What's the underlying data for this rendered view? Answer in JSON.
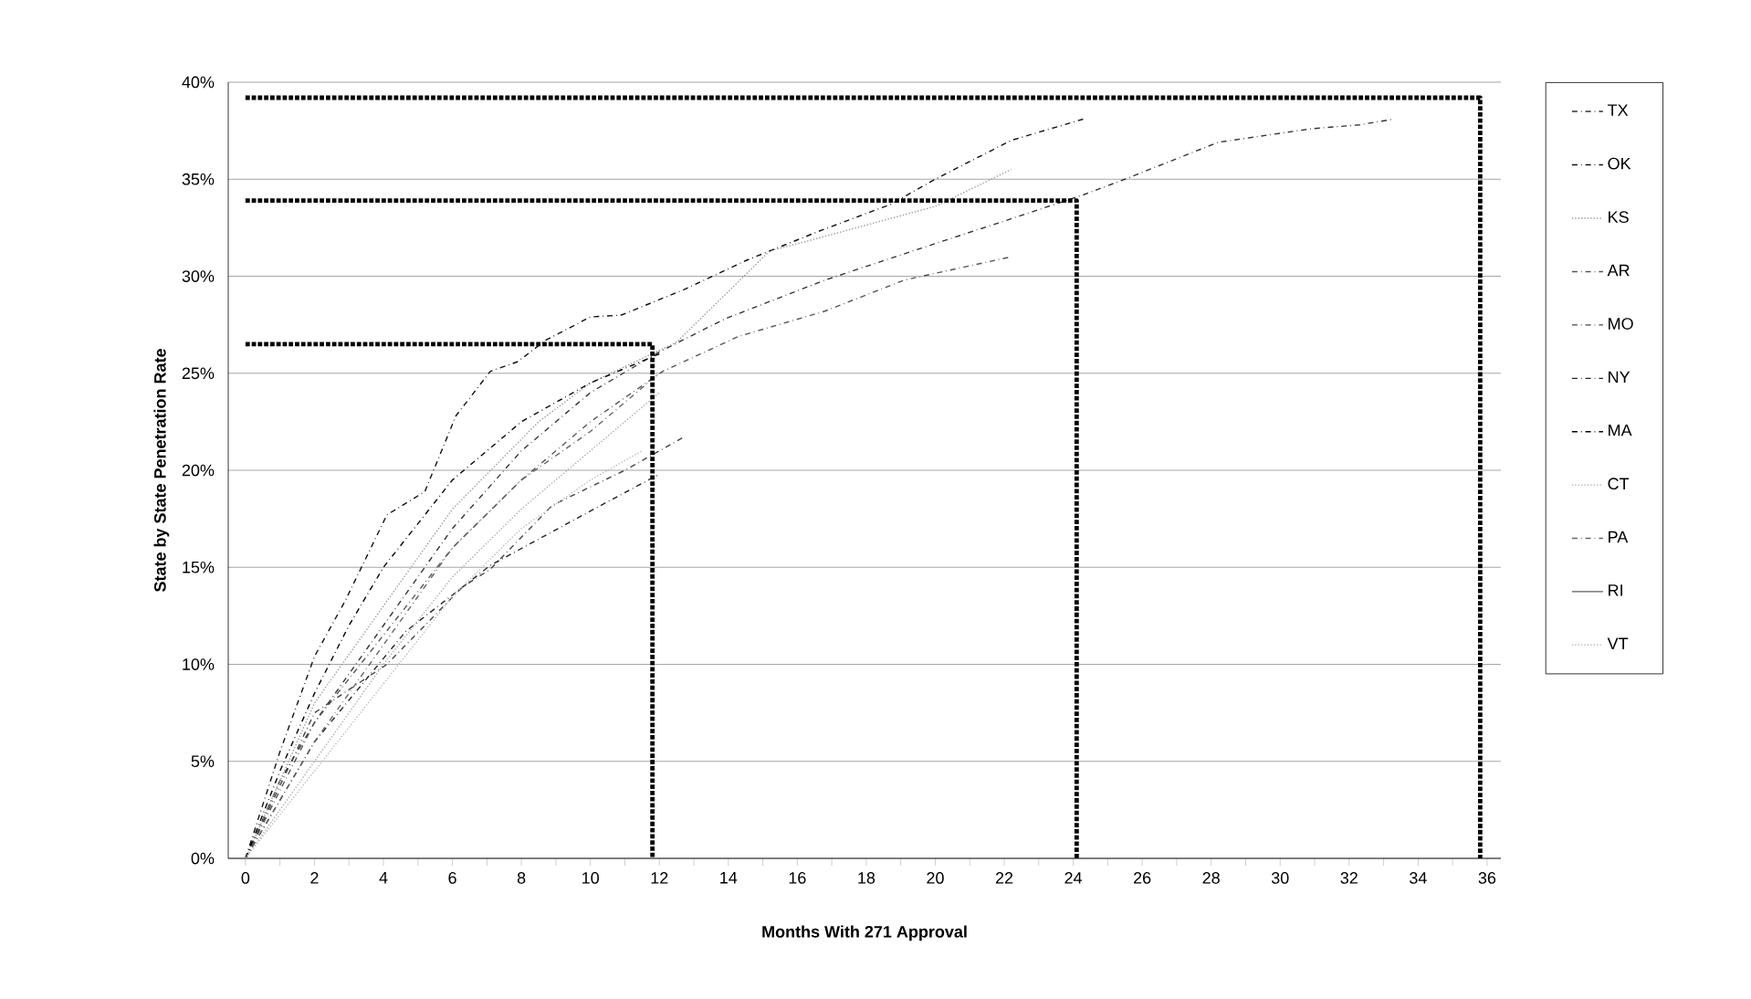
{
  "chart_data": {
    "type": "line",
    "xlabel": "Months With 271 Approval",
    "ylabel": "State by State Penetration Rate",
    "xlim": [
      -0.5,
      36.4
    ],
    "ylim": [
      0,
      40
    ],
    "xticks": [
      0,
      2,
      4,
      6,
      8,
      10,
      12,
      14,
      16,
      18,
      20,
      22,
      24,
      26,
      28,
      30,
      32,
      34,
      36
    ],
    "yticks": [
      {
        "value": 0,
        "label": "0%"
      },
      {
        "value": 5,
        "label": "5%"
      },
      {
        "value": 10,
        "label": "10%"
      },
      {
        "value": 15,
        "label": "15%"
      },
      {
        "value": 20,
        "label": "20%"
      },
      {
        "value": 25,
        "label": "25%"
      },
      {
        "value": 30,
        "label": "30%"
      },
      {
        "value": 35,
        "label": "35%"
      },
      {
        "value": 40,
        "label": "40%"
      }
    ],
    "grid": "y",
    "legend": "right",
    "series": [
      {
        "name": "TX",
        "color": "#333333",
        "line_style": "dashed",
        "x": [
          0,
          1,
          2,
          4,
          6,
          8,
          10,
          12,
          13.9,
          16.8,
          20.2,
          22.1,
          24.3,
          25.5,
          28.2,
          30.9,
          32.3,
          33.3
        ],
        "values": [
          0,
          4,
          7,
          12,
          17,
          21,
          24,
          26.1,
          27.8,
          29.8,
          31.8,
          32.9,
          34.2,
          35,
          36.9,
          37.6,
          37.8,
          38.1
        ]
      },
      {
        "name": "OK",
        "color": "#111111",
        "line_style": "dashed",
        "x": [
          0,
          1,
          2,
          2.9,
          4.1,
          5.2,
          6.1,
          7.1,
          7.9,
          8.7,
          10,
          10.9,
          12.7,
          14.5,
          16.6,
          18.7,
          20,
          22.2,
          24.3
        ],
        "values": [
          0,
          5.5,
          10.4,
          13.3,
          17.7,
          18.9,
          22.8,
          25.1,
          25.6,
          26.7,
          27.9,
          28,
          29.3,
          30.8,
          32.3,
          33.7,
          35,
          37,
          38.1
        ]
      },
      {
        "name": "KS",
        "color": "#999999",
        "line_style": "dotted",
        "x": [
          0,
          1,
          2,
          4,
          6,
          8.5,
          10,
          12.5,
          15.2,
          17.1,
          20,
          22.2
        ],
        "values": [
          0,
          4,
          8,
          13,
          18,
          22.5,
          24.5,
          26.6,
          31.3,
          32.2,
          33.6,
          35.5
        ]
      },
      {
        "name": "AR",
        "color": "#555555",
        "line_style": "dashed",
        "x": [
          0,
          1,
          2,
          4,
          6,
          8,
          10,
          12.1,
          14.3,
          16.8,
          19.1,
          22.2
        ],
        "values": [
          0,
          3.5,
          7,
          11.5,
          16,
          19.5,
          22.5,
          25.1,
          26.9,
          28.2,
          29.8,
          31
        ]
      },
      {
        "name": "MO",
        "color": "#444444",
        "line_style": "dashed",
        "x": [
          0,
          2,
          4.1,
          6.3,
          7.1,
          8.9,
          11,
          12.7
        ],
        "values": [
          0,
          7.5,
          10,
          14,
          14.9,
          18.2,
          20,
          21.7
        ]
      },
      {
        "name": "NY",
        "color": "#222222",
        "line_style": "dashed",
        "x": [
          0,
          2,
          4.65,
          7.1,
          10,
          12
        ],
        "values": [
          0,
          6,
          11.7,
          15.1,
          17.9,
          19.8
        ]
      },
      {
        "name": "MA",
        "color": "#000000",
        "line_style": "dashed",
        "x": [
          0,
          1,
          2,
          3,
          4,
          6,
          8,
          10,
          12
        ],
        "values": [
          0,
          4.5,
          8.5,
          12,
          15,
          19.5,
          22.5,
          24.5,
          26
        ]
      },
      {
        "name": "CT",
        "color": "#aaaaaa",
        "line_style": "dotted",
        "x": [
          0,
          2,
          4,
          6,
          8,
          10,
          12
        ],
        "values": [
          0,
          5,
          10,
          14.5,
          18,
          21,
          24
        ]
      },
      {
        "name": "PA",
        "color": "#666666",
        "line_style": "dashed",
        "x": [
          0,
          2,
          4,
          6,
          8,
          10,
          12
        ],
        "values": [
          0,
          6,
          11,
          16,
          19.5,
          22,
          25
        ]
      },
      {
        "name": "RI"
      },
      {
        "name": "VT",
        "color": "#bbbbbb",
        "line_style": "dotted",
        "x": [
          0,
          2,
          4,
          6,
          8,
          10,
          11.5
        ],
        "values": [
          0,
          4.5,
          9,
          13.5,
          17,
          19.5,
          21
        ]
      },
      {
        "color": "#000000",
        "line_style": "dotted",
        "x": [
          0,
          35.8,
          35.8
        ],
        "values": [
          39.2,
          39.2,
          0
        ]
      },
      {
        "color": "#000000",
        "line_style": "dotted",
        "x": [
          0,
          24.1,
          24.1
        ],
        "values": [
          33.9,
          33.9,
          0
        ]
      },
      {
        "color": "#000000",
        "line_style": "dotted",
        "x": [
          0,
          11.8,
          11.8
        ],
        "values": [
          26.5,
          26.5,
          0
        ]
      }
    ]
  }
}
